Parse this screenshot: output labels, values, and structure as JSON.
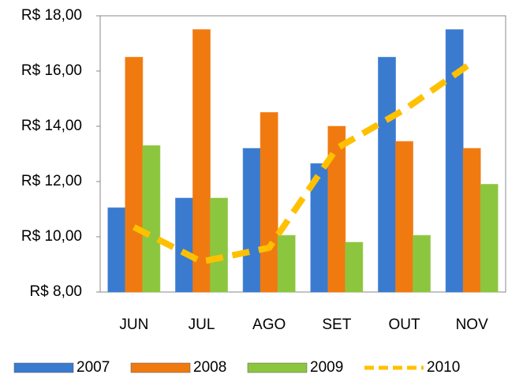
{
  "chart_data": {
    "type": "bar-line",
    "categories": [
      "JUN",
      "JUL",
      "AGO",
      "SET",
      "OUT",
      "NOV"
    ],
    "series": [
      {
        "name": "2007",
        "type": "bar",
        "color": "#3a7bd0",
        "values": [
          11.05,
          11.4,
          13.2,
          12.65,
          16.5,
          17.5
        ]
      },
      {
        "name": "2008",
        "type": "bar",
        "color": "#f07a10",
        "values": [
          16.5,
          17.5,
          14.5,
          14.0,
          13.45,
          13.2
        ]
      },
      {
        "name": "2009",
        "type": "bar",
        "color": "#8cc63f",
        "values": [
          13.3,
          11.4,
          10.05,
          9.8,
          10.05,
          11.9
        ]
      },
      {
        "name": "2010",
        "type": "line",
        "color": "#ffc000",
        "values": [
          10.35,
          9.1,
          9.6,
          13.2,
          14.6,
          16.3
        ]
      }
    ],
    "ylim": [
      8,
      18
    ],
    "yticks": [
      {
        "value": 8,
        "label": "R$ 8,00"
      },
      {
        "value": 10,
        "label": "R$ 10,00"
      },
      {
        "value": 12,
        "label": "R$ 12,00"
      },
      {
        "value": 14,
        "label": "R$ 14,00"
      },
      {
        "value": 16,
        "label": "R$ 16,00"
      },
      {
        "value": 18,
        "label": "R$ 18,00"
      }
    ],
    "grid": false,
    "legend": "bottom"
  }
}
